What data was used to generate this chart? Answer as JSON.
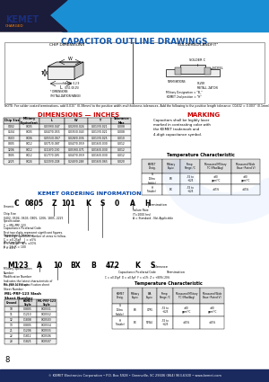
{
  "title": "CAPACITOR OUTLINE DRAWINGS",
  "footer_text": "© KEMET Electronics Corporation • P.O. Box 5928 • Greenville, SC 29606 (864) 963-6300 • www.kemet.com",
  "page_num": "8",
  "note_text": "NOTE: For solder coated terminations, add 0.015\" (0.38mm) to the positive width and thickness tolerances. Add the following to the positive length tolerance: C0402 = 0.003\" (0.1mm), C0603, C0805, C1206 and C2225 = 0.007\" (0.18mm), add 0.012\" (0.3mm) to the bandwidth tolerance.",
  "dim_title": "DIMENSIONS — INCHES",
  "marking_title": "MARKING",
  "marking_text": "Capacitors shall be legibly laser\nmarked in contrasting color with\nthe KEMET trademark and\n4-digit capacitance symbol.",
  "ordering_title": "KEMET ORDERING INFORMATION",
  "ordering_code": [
    "C",
    "0805",
    "Z",
    "101",
    "K",
    "S",
    "0",
    "A",
    "H"
  ],
  "mil_code": [
    "M123",
    "A",
    "10",
    "BX",
    "B",
    "472",
    "K",
    "S"
  ],
  "dim_headers": [
    "Chip Size",
    "Military\nEquivalent",
    "L",
    "W",
    "T",
    "Tolerance\nMax"
  ],
  "dim_rows": [
    [
      "0402",
      "CK05",
      "0.039/0.047",
      "0.020/0.024",
      "0.013/0.021",
      "0.008"
    ],
    [
      "0504",
      "CK05",
      "0.047/0.055",
      "0.035/0.043",
      "0.013/0.021",
      "0.008"
    ],
    [
      "0603",
      "CK06",
      "0.055/0.067",
      "0.028/0.036",
      "0.013/0.025",
      "0.010"
    ],
    [
      "0805",
      "CK12",
      "0.071/0.087",
      "0.047/0.059",
      "0.016/0.030",
      "0.012"
    ],
    [
      "1206",
      "CK12",
      "0.118/0.130",
      "0.059/0.071",
      "0.016/0.030",
      "0.012"
    ],
    [
      "1805",
      "CK12",
      "0.177/0.185",
      "0.047/0.059",
      "0.016/0.030",
      "0.012"
    ],
    [
      "2225",
      "CK24",
      "0.220/0.228",
      "0.240/0.248",
      "0.016/0.065",
      "0.020"
    ]
  ],
  "slash_headers": [
    "Ground",
    "KEMET\nStyle",
    "MIL-PRF-123\nStyle"
  ],
  "slash_rows": [
    [
      "10",
      "C0805",
      "CK0551"
    ],
    [
      "11",
      "C1210",
      "CK0552"
    ],
    [
      "12",
      "C1808",
      "CK0503"
    ],
    [
      "13",
      "C0805",
      "CK0554"
    ],
    [
      "21",
      "C1206",
      "CK0555"
    ],
    [
      "22",
      "C1812",
      "CK0506"
    ],
    [
      "23",
      "C1825",
      "CK0507"
    ]
  ],
  "tc1_headers": [
    "KEMET\nDesig.",
    "Military\nEquiv.",
    "Temp\nRange,°C",
    "Measured Military\nTC (Max/Avg)",
    "Measured Wide\nBase (Rated V)"
  ],
  "tc1_col_w": [
    23,
    20,
    22,
    35,
    32
  ],
  "tc1_rows": [
    [
      "G\n(Ultra\nStable)",
      "BR",
      "-55 to\n+125",
      "±30\nppm/°C",
      "±30\nppm/°C"
    ],
    [
      "H\n(Stable)",
      "BX",
      "-55 to\n+125",
      "±15%",
      "±15%"
    ]
  ],
  "tc2_headers": [
    "KEMET\nDesig.",
    "Military\nEquiv.",
    "EIA\nEquiv.",
    "Temp\nRange,°C",
    "Measured Military\nTC (Max/Avg)",
    "Measured Wide\nBase (Rated V)"
  ],
  "tc2_col_w": [
    18,
    16,
    16,
    18,
    30,
    27
  ],
  "tc2_rows": [
    [
      "G\n(Ultra\nStable)",
      "BR",
      "C7R5",
      "-55 to\n+125",
      "±30\nppm/°C",
      "±30\nppm/°C"
    ],
    [
      "H\n(Stable)",
      "BX",
      "57W4",
      "-55 to\n+125",
      "±15%",
      "±15%"
    ]
  ]
}
